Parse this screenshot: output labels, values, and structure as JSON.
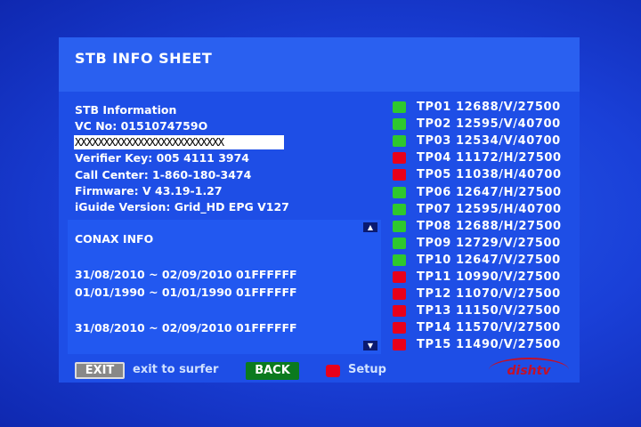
{
  "header": {
    "title": "STB INFO SHEET"
  },
  "stb_info": {
    "heading": "STB Information",
    "vc_no": "VC No: 0151074759O",
    "masked": "XXXXXXXXXXXXXXXXXXXXXXXXXX",
    "verifier_key": "Verifier Key: 005 4111 3974",
    "call_center": "Call Center: 1-860-180-3474",
    "firmware": "Firmware: V 43.19-1.27",
    "iguide": "iGuide Version: Grid_HD EPG V127"
  },
  "conax": {
    "title": "CONAX INFO",
    "lines": [
      "31/08/2010 ~ 02/09/2010 01FFFFFF",
      "01/01/1990 ~ 01/01/1990 01FFFFFF",
      "",
      "31/08/2010 ~ 02/09/2010 01FFFFFF"
    ]
  },
  "colors": {
    "ok": "#2ec82e",
    "fail": "#e8001a"
  },
  "transponders": [
    {
      "label": "TP01 12688/V/27500",
      "status": "ok"
    },
    {
      "label": "TP02 12595/V/40700",
      "status": "ok"
    },
    {
      "label": "TP03 12534/V/40700",
      "status": "ok"
    },
    {
      "label": "TP04 11172/H/27500",
      "status": "fail"
    },
    {
      "label": "TP05 11038/H/40700",
      "status": "fail"
    },
    {
      "label": "TP06 12647/H/27500",
      "status": "ok"
    },
    {
      "label": "TP07 12595/H/40700",
      "status": "ok"
    },
    {
      "label": "TP08 12688/H/27500",
      "status": "ok"
    },
    {
      "label": "TP09 12729/V/27500",
      "status": "ok"
    },
    {
      "label": "TP10 12647/V/27500",
      "status": "ok"
    },
    {
      "label": "TP11 10990/V/27500",
      "status": "fail"
    },
    {
      "label": "TP12 11070/V/27500",
      "status": "fail"
    },
    {
      "label": "TP13 11150/V/27500",
      "status": "fail"
    },
    {
      "label": "TP14 11570/V/27500",
      "status": "fail"
    },
    {
      "label": "TP15 11490/V/27500",
      "status": "fail"
    }
  ],
  "footer": {
    "exit_label": "EXIT",
    "exit_text": "exit to surfer",
    "back_label": "BACK",
    "setup_text": "Setup",
    "logo": "dishtv"
  }
}
